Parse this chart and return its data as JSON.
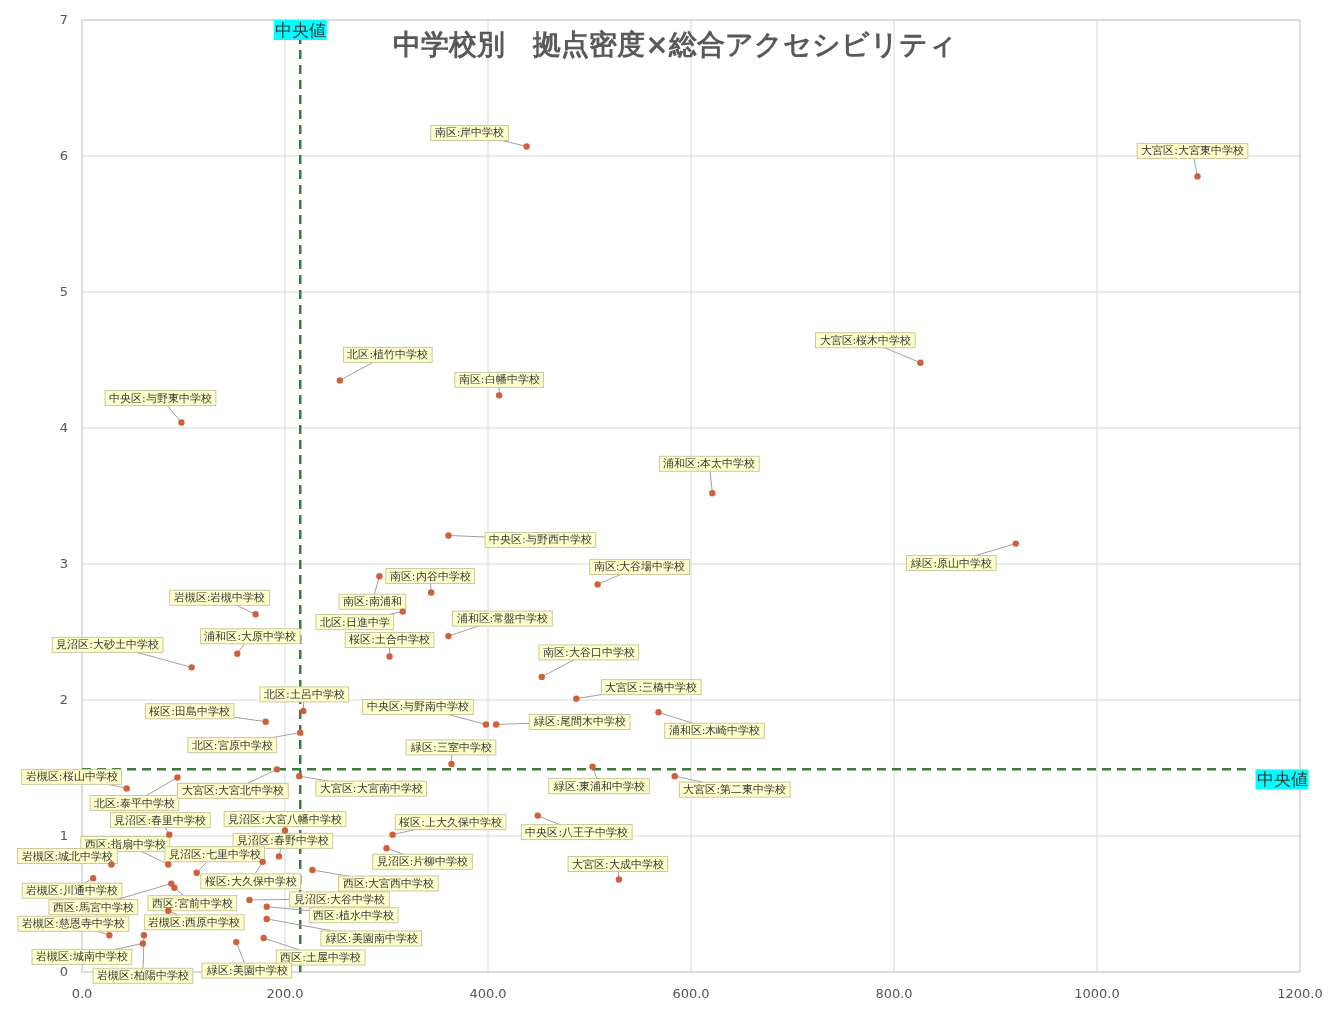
{
  "chart_data": {
    "type": "scatter",
    "title": "中学校別　拠点密度×総合アクセシビリティ",
    "x": [
      438,
      1099,
      826,
      254,
      411,
      98,
      621,
      361,
      920,
      344,
      293,
      316,
      508,
      361,
      303,
      171,
      153,
      108,
      453,
      487,
      218,
      181,
      215,
      398,
      408,
      568,
      364,
      503,
      584,
      214,
      44,
      94,
      192,
      86,
      200,
      194,
      85,
      29,
      113,
      178,
      227,
      11,
      88,
      91,
      165,
      182,
      182,
      179,
      152,
      27,
      85,
      60,
      61,
      306,
      300,
      449,
      529
    ],
    "values": [
      6.07,
      5.85,
      4.48,
      4.35,
      4.24,
      4.04,
      3.52,
      3.21,
      3.15,
      2.79,
      2.91,
      2.65,
      2.85,
      2.47,
      2.32,
      2.63,
      2.34,
      2.24,
      2.17,
      2.01,
      1.92,
      1.84,
      1.76,
      1.82,
      1.82,
      1.91,
      1.53,
      1.51,
      1.44,
      1.44,
      1.35,
      1.43,
      1.49,
      1.01,
      1.04,
      0.85,
      0.79,
      0.79,
      0.73,
      0.81,
      0.75,
      0.69,
      0.65,
      0.62,
      0.53,
      0.48,
      0.39,
      0.25,
      0.22,
      0.27,
      0.45,
      0.21,
      0.27,
      1.01,
      0.91,
      1.15,
      0.68
    ],
    "color": "#d0603a",
    "marker": "circle",
    "grid": true,
    "xlim": [
      0,
      1200
    ],
    "xticks": [
      {
        "value": 0,
        "label": "0.0"
      },
      {
        "value": 200,
        "label": "200.0"
      },
      {
        "value": 400,
        "label": "400.0"
      },
      {
        "value": 600,
        "label": "600.0"
      },
      {
        "value": 800,
        "label": "800.0"
      },
      {
        "value": 1000,
        "label": "1000.0"
      },
      {
        "value": 1200,
        "label": "1200.0"
      }
    ],
    "ylim": [
      0,
      7
    ],
    "yticks": [
      0,
      1,
      2,
      3,
      4,
      5,
      6,
      7
    ],
    "ref_lines": [
      {
        "axis": "x",
        "value": 215,
        "label": "中央値",
        "color": "#3a7a3a",
        "line_style": "dashed"
      },
      {
        "axis": "y",
        "value": 1.49,
        "label": "中央値",
        "color": "#3a7a3a",
        "line_style": "dashed"
      }
    ],
    "annotations": [
      {
        "text": "南区:岸中学校",
        "x": 438,
        "y": 6.07
      },
      {
        "text": "大宮区:大宮東中学校",
        "x": 1099,
        "y": 5.85
      },
      {
        "text": "大宮区:桜木中学校",
        "x": 826,
        "y": 4.48
      },
      {
        "text": "北区:植竹中学校",
        "x": 254,
        "y": 4.35
      },
      {
        "text": "南区:白幡中学校",
        "x": 411,
        "y": 4.24
      },
      {
        "text": "中央区:与野東中学校",
        "x": 98,
        "y": 4.04
      },
      {
        "text": "浦和区:本太中学校",
        "x": 621,
        "y": 3.52
      },
      {
        "text": "中央区:与野西中学校",
        "x": 361,
        "y": 3.21
      },
      {
        "text": "緑区:原山中学校",
        "x": 920,
        "y": 3.15
      },
      {
        "text": "南区:内谷中学校",
        "x": 344,
        "y": 2.79
      },
      {
        "text": "南区:南浦和",
        "x": 293,
        "y": 2.91
      },
      {
        "text": "北区:日進中学",
        "x": 316,
        "y": 2.65
      },
      {
        "text": "南区:大谷場中学校",
        "x": 508,
        "y": 2.85
      },
      {
        "text": "浦和区:常盤中学校",
        "x": 361,
        "y": 2.47
      },
      {
        "text": "桜区:土合中学校",
        "x": 303,
        "y": 2.32
      },
      {
        "text": "岩槻区:岩槻中学校",
        "x": 171,
        "y": 2.63
      },
      {
        "text": "浦和区:大原中学校",
        "x": 153,
        "y": 2.34
      },
      {
        "text": "見沼区:大砂土中学校",
        "x": 108,
        "y": 2.24
      },
      {
        "text": "南区:大谷口中学校",
        "x": 453,
        "y": 2.17
      },
      {
        "text": "大宮区:三橋中学校",
        "x": 487,
        "y": 2.01
      },
      {
        "text": "北区:土呂中学校",
        "x": 218,
        "y": 1.92
      },
      {
        "text": "桜区:田島中学校",
        "x": 181,
        "y": 1.84
      },
      {
        "text": "北区:宮原中学校",
        "x": 215,
        "y": 1.76
      },
      {
        "text": "中央区:与野南中学校",
        "x": 398,
        "y": 1.82
      },
      {
        "text": "緑区:尾間木中学校",
        "x": 408,
        "y": 1.82
      },
      {
        "text": "浦和区:木崎中学校",
        "x": 568,
        "y": 1.91
      },
      {
        "text": "緑区:三室中学校",
        "x": 364,
        "y": 1.53
      },
      {
        "text": "緑区:東浦和中学校",
        "x": 503,
        "y": 1.51
      },
      {
        "text": "大宮区:第二東中学校",
        "x": 584,
        "y": 1.44
      },
      {
        "text": "大宮区:大宮南中学校",
        "x": 214,
        "y": 1.44
      },
      {
        "text": "岩槻区:桜山中学校",
        "x": 44,
        "y": 1.35
      },
      {
        "text": "北区:泰平中学校",
        "x": 94,
        "y": 1.43
      },
      {
        "text": "大宮区:大宮北中学校",
        "x": 192,
        "y": 1.49
      },
      {
        "text": "見沼区:春里中学校",
        "x": 86,
        "y": 1.01
      },
      {
        "text": "見沼区:大宮八幡中学校",
        "x": 200,
        "y": 1.04
      },
      {
        "text": "見沼区:春野中学校",
        "x": 194,
        "y": 0.85
      },
      {
        "text": "西区:指扇中学校",
        "x": 85,
        "y": 0.79
      },
      {
        "text": "岩槻区:城北中学校",
        "x": 29,
        "y": 0.79
      },
      {
        "text": "見沼区:七里中学校",
        "x": 113,
        "y": 0.73
      },
      {
        "text": "桜区:大久保中学校",
        "x": 178,
        "y": 0.81
      },
      {
        "text": "西区:大宮西中学校",
        "x": 227,
        "y": 0.75
      },
      {
        "text": "岩槻区:川通中学校",
        "x": 11,
        "y": 0.69
      },
      {
        "text": "西区:馬宮中学校",
        "x": 88,
        "y": 0.65
      },
      {
        "text": "西区:宮前中学校",
        "x": 91,
        "y": 0.62
      },
      {
        "text": "見沼区:大谷中学校",
        "x": 165,
        "y": 0.53
      },
      {
        "text": "西区:植水中学校",
        "x": 182,
        "y": 0.48
      },
      {
        "text": "緑区:美園南中学校",
        "x": 182,
        "y": 0.39
      },
      {
        "text": "西区:土屋中学校",
        "x": 179,
        "y": 0.25
      },
      {
        "text": "緑区:美園中学校",
        "x": 152,
        "y": 0.22
      },
      {
        "text": "岩槻区:慈恩寺中学校",
        "x": 27,
        "y": 0.27
      },
      {
        "text": "岩槻区:西原中学校",
        "x": 85,
        "y": 0.45
      },
      {
        "text": "岩槻区:城南中学校",
        "x": 60,
        "y": 0.21
      },
      {
        "text": "岩槻区:柏陽中学校",
        "x": 61,
        "y": 0.27
      },
      {
        "text": "桜区:上大久保中学校",
        "x": 306,
        "y": 1.01
      },
      {
        "text": "見沼区:片柳中学校",
        "x": 300,
        "y": 0.91
      },
      {
        "text": "中央区:八王子中学校",
        "x": 449,
        "y": 1.15
      },
      {
        "text": "大宮区:大成中学校",
        "x": 529,
        "y": 0.68
      }
    ]
  }
}
